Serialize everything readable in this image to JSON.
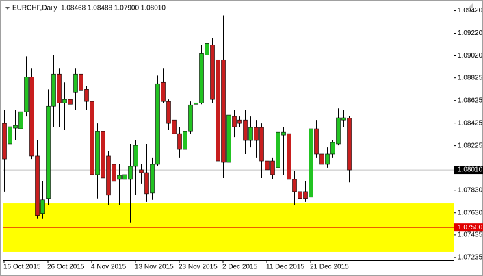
{
  "chart_data": {
    "type": "candlestick",
    "title": "EURCHF,Daily",
    "ohlc_text": "1.08468 1.08488 1.07900 1.08010",
    "categories": [
      "16 Oct 2015",
      null,
      null,
      null,
      null,
      null,
      null,
      null,
      "26 Oct 2015",
      null,
      null,
      null,
      null,
      null,
      null,
      null,
      "4 Nov 2015",
      null,
      null,
      null,
      null,
      null,
      null,
      null,
      "13 Nov 2015",
      null,
      null,
      null,
      null,
      null,
      null,
      null,
      "23 Nov 2015",
      null,
      null,
      null,
      null,
      null,
      null,
      null,
      "2 Dec 2015",
      null,
      null,
      null,
      null,
      null,
      null,
      null,
      "11 Dec 2015",
      null,
      null,
      null,
      null,
      null,
      null,
      null,
      "21 Dec 2015",
      null,
      null,
      null,
      null,
      null,
      null,
      null
    ],
    "open": [
      1.08422,
      1.08241,
      1.0838,
      1.08374,
      1.08525,
      1.08833,
      1.08132,
      1.07624,
      1.07757,
      1.08573,
      1.08858,
      1.08603,
      1.08634,
      1.08694,
      1.08858,
      1.08724,
      1.08616,
      1.07968,
      1.08349,
      1.08132,
      1.08059,
      1.07926,
      1.07926,
      1.07926,
      1.08041,
      1.08011,
      1.07986,
      1.07805,
      1.08059,
      1.08785,
      1.08616,
      1.08452,
      1.08331,
      1.08192,
      1.08349,
      1.08591,
      1.08603,
      1.09027,
      1.09118,
      1.08985,
      1.08985,
      1.08077,
      1.08483,
      1.08452,
      1.08452,
      1.08271,
      1.08386,
      1.08386,
      1.08089,
      1.08089,
      1.08029,
      1.08319,
      1.08331,
      1.07926,
      1.07817,
      1.07817,
      1.07769,
      1.08374,
      1.0815,
      1.08059,
      1.0815,
      1.08241,
      1.08452,
      1.08468
    ],
    "high": [
      1.08543,
      1.08483,
      1.08543,
      1.08573,
      1.09015,
      1.08906,
      1.08271,
      1.07908,
      1.08724,
      1.09027,
      1.08906,
      1.08785,
      1.09178,
      1.08906,
      1.08918,
      1.08755,
      1.08664,
      1.08422,
      1.08392,
      1.0818,
      1.0812,
      1.08059,
      1.0812,
      1.08241,
      1.08271,
      1.08059,
      1.08241,
      1.0812,
      1.08845,
      1.08906,
      1.08634,
      1.08483,
      1.08392,
      1.08483,
      1.08616,
      1.08785,
      1.09118,
      1.09269,
      1.09178,
      1.09269,
      1.09378,
      1.09148,
      1.08543,
      1.08483,
      1.08543,
      1.08483,
      1.08452,
      1.08422,
      1.0818,
      1.0812,
      1.08422,
      1.08392,
      1.08362,
      1.07998,
      1.07878,
      1.07908,
      1.08422,
      1.08452,
      1.08241,
      1.0821,
      1.08271,
      1.08555,
      1.08543,
      1.08488
    ],
    "low": [
      1.07817,
      1.0821,
      1.08271,
      1.08331,
      1.08483,
      1.08107,
      1.07575,
      1.07575,
      1.07696,
      1.08392,
      1.08392,
      1.08362,
      1.08483,
      1.08543,
      1.08694,
      1.08543,
      1.07847,
      1.07757,
      1.07273,
      1.07696,
      1.07666,
      1.07696,
      1.07636,
      1.07545,
      1.07787,
      1.0789,
      1.07726,
      1.07745,
      1.08047,
      1.08603,
      1.08362,
      1.08241,
      1.0812,
      1.0812,
      1.08331,
      1.08585,
      1.08591,
      1.08997,
      1.08603,
      1.07968,
      1.07938,
      1.08059,
      1.08301,
      1.08392,
      1.0815,
      1.0821,
      1.0812,
      1.07938,
      1.07926,
      1.07926,
      1.07666,
      1.07968,
      1.07757,
      1.07696,
      1.07545,
      1.07726,
      1.07745,
      1.0812,
      1.08029,
      1.08029,
      1.0812,
      1.08228,
      1.08392,
      1.079
    ],
    "close": [
      1.08107,
      1.08392,
      1.08404,
      1.08525,
      1.08833,
      1.08132,
      1.07606,
      1.07745,
      1.08573,
      1.08858,
      1.08603,
      1.08634,
      1.08591,
      1.08858,
      1.08712,
      1.08616,
      1.07968,
      1.08349,
      1.07938,
      1.07787,
      1.07908,
      1.07962,
      1.07968,
      1.08041,
      1.08228,
      1.07986,
      1.07799,
      1.08059,
      1.08773,
      1.08616,
      1.08422,
      1.08331,
      1.08192,
      1.08349,
      1.08585,
      1.08603,
      1.09039,
      1.0913,
      1.08634,
      1.08089,
      1.08077,
      1.08495,
      1.08392,
      1.08422,
      1.08271,
      1.08386,
      1.08271,
      1.08089,
      1.08011,
      1.07968,
      1.08343,
      1.08343,
      1.07926,
      1.07817,
      1.07757,
      1.07757,
      1.08374,
      1.0815,
      1.08059,
      1.0815,
      1.08253,
      1.08471,
      1.08471,
      1.0801
    ],
    "up_color": "#22c322",
    "down_color": "#c81e1e",
    "ylim": [
      1.0721,
      1.0949
    ],
    "yticks": [
      {
        "value": 1.0942,
        "label": "1.09420"
      },
      {
        "value": 1.0922,
        "label": "1.09220"
      },
      {
        "value": 1.0902,
        "label": "1.09020"
      },
      {
        "value": 1.08825,
        "label": "1.08825"
      },
      {
        "value": 1.08625,
        "label": "1.08625"
      },
      {
        "value": 1.08425,
        "label": "1.08425"
      },
      {
        "value": 1.08225,
        "label": "1.08225"
      },
      {
        "value": 1.0783,
        "label": "1.07830"
      },
      {
        "value": 1.0763,
        "label": "1.07630"
      },
      {
        "value": 1.07435,
        "label": "1.07435"
      },
      {
        "value": 1.07235,
        "label": "1.07235"
      }
    ],
    "current_price": {
      "value": 1.0801,
      "label": "1.08010"
    },
    "level": {
      "value": 1.075,
      "label": "1.07500",
      "color": "#e00000"
    },
    "zone": {
      "range": [
        1.07283,
        1.07713
      ],
      "color": "#ffff00"
    }
  }
}
